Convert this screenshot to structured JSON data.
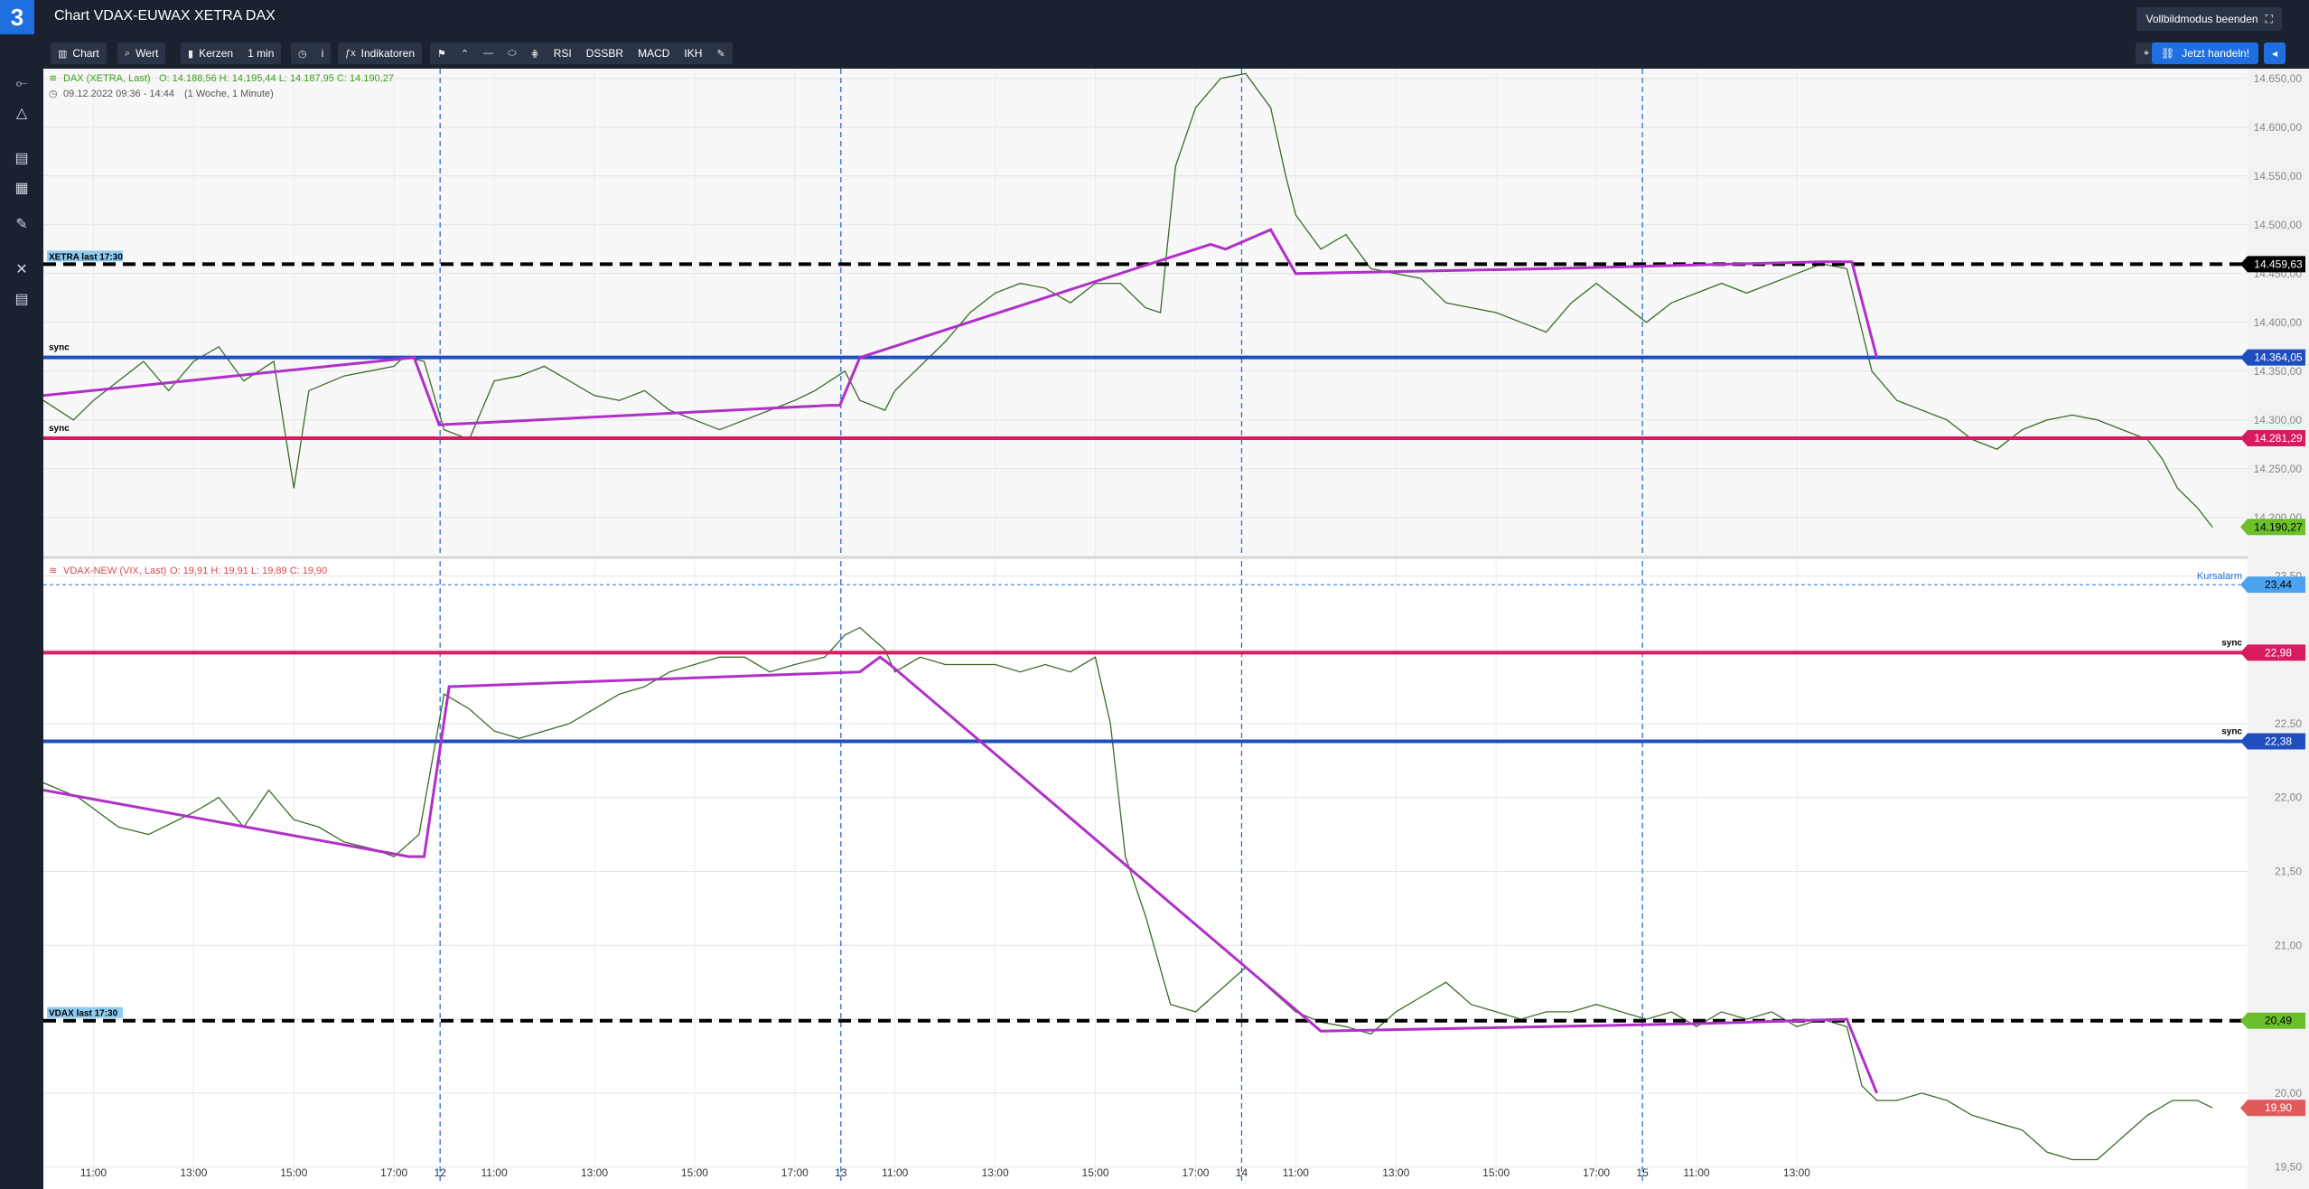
{
  "app": {
    "logo": "3",
    "title": "Chart VDAX-EUWAX XETRA DAX"
  },
  "topbar": {
    "fullscreen_exit_label": "Vollbildmodus beenden",
    "fullscreen_icon": "collapse-icon"
  },
  "toolbar": {
    "chart_label": "Chart",
    "value_label": "Wert",
    "candles_label": "Kerzen",
    "interval_label": "1 min",
    "info_label": "i",
    "indicators_label": "Indikatoren",
    "rsi_label": "RSI",
    "dssbr_label": "DSSBR",
    "macd_label": "MACD",
    "ikh_label": "IKH",
    "trade_label": "Jetzt handeln!"
  },
  "sidebar": {
    "icons": [
      "line-tool-icon",
      "triangle-icon",
      "fibonacci-icon",
      "trash-icon",
      "pen-icon",
      "tools-icon",
      "calculator-icon"
    ]
  },
  "colors": {
    "accent": "#1f6fe0",
    "magenta": "#d81b60",
    "blue": "#1f4fbf",
    "purple": "#b030c8",
    "green": "#6bbf2a",
    "red": "#e05a5a",
    "black": "#000000"
  },
  "chart_data": [
    {
      "type": "line",
      "title": "DAX (XETRA, Last)",
      "ohlc": {
        "O": "14.188,56",
        "H": "14.195,44",
        "L": "14.187,95",
        "C": "14.190,27"
      },
      "ohlc_labels": {
        "o": "O: 14.188,56",
        "h": "H: 14.195,44",
        "l": "L: 14.187,95",
        "c": "C: 14.190,27"
      },
      "range_text": "09.12.2022 09:36 - 14:44",
      "period_text": "(1 Woche, 1 Minute)",
      "ylim": [
        14160,
        14660
      ],
      "yticks": [
        "14.650,00",
        "14.600,00",
        "14.550,00",
        "14.500,00",
        "14.450,00",
        "14.400,00",
        "14.350,00",
        "14.300,00",
        "14.250,00",
        "14.200,00"
      ],
      "ytick_values": [
        14650,
        14600,
        14550,
        14500,
        14450,
        14400,
        14350,
        14300,
        14250,
        14200
      ],
      "xticks": [
        "11:00",
        "13:00",
        "15:00",
        "17:00",
        "12",
        "11:00",
        "13:00",
        "15:00",
        "17:00",
        "13",
        "11:00",
        "13:00",
        "15:00",
        "17:00",
        "14",
        "11:00",
        "13:00",
        "15:00",
        "17:00",
        "15",
        "11:00",
        "13:00"
      ],
      "xtick_index": [
        1,
        3,
        5,
        7,
        7.92,
        9,
        11,
        13,
        15,
        15.92,
        17,
        19,
        21,
        23,
        23.92,
        25,
        27,
        29,
        31,
        31.92,
        33,
        35
      ],
      "series": [
        {
          "values": [
            [
              0,
              14320
            ],
            [
              0.6,
              14300
            ],
            [
              1,
              14320
            ],
            [
              1.5,
              14340
            ],
            [
              2,
              14360
            ],
            [
              2.5,
              14330
            ],
            [
              3,
              14360
            ],
            [
              3.5,
              14375
            ],
            [
              4,
              14340
            ],
            [
              4.6,
              14360
            ],
            [
              5,
              14230
            ],
            [
              5.3,
              14330
            ],
            [
              6,
              14345
            ],
            [
              6.5,
              14350
            ],
            [
              7,
              14355
            ],
            [
              7.2,
              14365
            ],
            [
              7.6,
              14360
            ],
            [
              8,
              14290
            ],
            [
              8.5,
              14280
            ],
            [
              9,
              14340
            ],
            [
              9.5,
              14345
            ],
            [
              10,
              14355
            ],
            [
              10.5,
              14340
            ],
            [
              11,
              14325
            ],
            [
              11.5,
              14320
            ],
            [
              12,
              14330
            ],
            [
              12.5,
              14310
            ],
            [
              13,
              14300
            ],
            [
              13.5,
              14290
            ],
            [
              14,
              14300
            ],
            [
              14.5,
              14310
            ],
            [
              15,
              14320
            ],
            [
              15.4,
              14330
            ],
            [
              16,
              14350
            ],
            [
              16.3,
              14320
            ],
            [
              16.8,
              14310
            ],
            [
              17,
              14330
            ],
            [
              17.4,
              14350
            ],
            [
              18,
              14380
            ],
            [
              18.5,
              14410
            ],
            [
              19,
              14430
            ],
            [
              19.5,
              14440
            ],
            [
              20,
              14435
            ],
            [
              20.5,
              14420
            ],
            [
              21,
              14440
            ],
            [
              21.5,
              14440
            ],
            [
              22,
              14415
            ],
            [
              22.3,
              14410
            ],
            [
              22.6,
              14560
            ],
            [
              23,
              14620
            ],
            [
              23.5,
              14650
            ],
            [
              24,
              14655
            ],
            [
              24.5,
              14620
            ],
            [
              24.8,
              14550
            ],
            [
              25,
              14510
            ],
            [
              25.5,
              14475
            ],
            [
              26,
              14490
            ],
            [
              26.5,
              14455
            ],
            [
              27,
              14450
            ],
            [
              27.5,
              14445
            ],
            [
              28,
              14420
            ],
            [
              28.5,
              14415
            ],
            [
              29,
              14410
            ],
            [
              29.5,
              14400
            ],
            [
              30,
              14390
            ],
            [
              30.5,
              14420
            ],
            [
              31,
              14440
            ],
            [
              31.5,
              14420
            ],
            [
              32,
              14400
            ],
            [
              32.5,
              14420
            ],
            [
              33,
              14430
            ],
            [
              33.5,
              14440
            ],
            [
              34,
              14430
            ],
            [
              34.5,
              14440
            ],
            [
              35,
              14450
            ],
            [
              35.5,
              14460
            ],
            [
              36,
              14455
            ],
            [
              36.5,
              14350
            ],
            [
              37,
              14320
            ],
            [
              37.5,
              14310
            ],
            [
              38,
              14300
            ],
            [
              38.5,
              14280
            ],
            [
              39,
              14270
            ],
            [
              39.5,
              14290
            ],
            [
              40,
              14300
            ],
            [
              40.5,
              14305
            ],
            [
              41,
              14300
            ],
            [
              41.5,
              14290
            ],
            [
              42,
              14280
            ],
            [
              42.3,
              14260
            ],
            [
              42.6,
              14230
            ],
            [
              43,
              14210
            ],
            [
              43.3,
              14190
            ]
          ]
        }
      ],
      "hlines": [
        {
          "value": 14459.63,
          "label": "14.459,63",
          "style": "dashed-black",
          "tag": "XETRA last 17:30"
        },
        {
          "value": 14364.05,
          "label": "14.364,05",
          "style": "solid-blue",
          "tag": "sync"
        },
        {
          "value": 14281.29,
          "label": "14.281,29",
          "style": "solid-magenta",
          "tag": "sync"
        }
      ],
      "current": {
        "value": 14190.27,
        "label": "14.190,27"
      },
      "trend_path": [
        [
          0,
          14325
        ],
        [
          7.4,
          14364
        ],
        [
          7.9,
          14295
        ],
        [
          15.7,
          14315
        ],
        [
          15.9,
          14315
        ],
        [
          16.3,
          14364
        ],
        [
          23.3,
          14480
        ],
        [
          23.6,
          14475
        ],
        [
          24.5,
          14495
        ],
        [
          25,
          14450
        ],
        [
          30,
          14455
        ],
        [
          35.5,
          14462
        ],
        [
          36.1,
          14462
        ],
        [
          36.6,
          14364
        ]
      ]
    },
    {
      "type": "line",
      "title": "VDAX-NEW (VIX, Last)",
      "ohlc": {
        "O": "19,91",
        "H": "19,91",
        "L": "19,89",
        "C": "19,90"
      },
      "ohlc_labels": {
        "o": "O: 19,91",
        "h": "H: 19,91",
        "l": "L: 19,89",
        "c": "C: 19,90"
      },
      "ylim": [
        19.4,
        23.6
      ],
      "yticks": [
        "23,50",
        "23,00",
        "22,50",
        "22,00",
        "21,50",
        "21,00",
        "20,50",
        "20,00",
        "19,50"
      ],
      "ytick_values": [
        23.5,
        23.0,
        22.5,
        22.0,
        21.5,
        21.0,
        20.5,
        20.0,
        19.5
      ],
      "series": [
        {
          "values": [
            [
              0,
              22.1
            ],
            [
              0.7,
              22.0
            ],
            [
              1.5,
              21.8
            ],
            [
              2.1,
              21.75
            ],
            [
              3,
              21.9
            ],
            [
              3.5,
              22.0
            ],
            [
              4,
              21.8
            ],
            [
              4.5,
              22.05
            ],
            [
              5,
              21.85
            ],
            [
              5.5,
              21.8
            ],
            [
              6,
              21.7
            ],
            [
              6.6,
              21.65
            ],
            [
              7,
              21.6
            ],
            [
              7.5,
              21.75
            ],
            [
              8,
              22.7
            ],
            [
              8.5,
              22.6
            ],
            [
              9,
              22.45
            ],
            [
              9.5,
              22.4
            ],
            [
              10,
              22.45
            ],
            [
              10.5,
              22.5
            ],
            [
              11,
              22.6
            ],
            [
              11.5,
              22.7
            ],
            [
              12,
              22.75
            ],
            [
              12.5,
              22.85
            ],
            [
              13,
              22.9
            ],
            [
              13.5,
              22.95
            ],
            [
              14,
              22.95
            ],
            [
              14.5,
              22.85
            ],
            [
              15,
              22.9
            ],
            [
              15.6,
              22.95
            ],
            [
              16,
              23.1
            ],
            [
              16.3,
              23.15
            ],
            [
              16.8,
              23.0
            ],
            [
              17,
              22.85
            ],
            [
              17.5,
              22.95
            ],
            [
              18,
              22.9
            ],
            [
              18.5,
              22.9
            ],
            [
              19,
              22.9
            ],
            [
              19.5,
              22.85
            ],
            [
              20,
              22.9
            ],
            [
              20.5,
              22.85
            ],
            [
              21,
              22.95
            ],
            [
              21.3,
              22.5
            ],
            [
              21.6,
              21.6
            ],
            [
              22,
              21.2
            ],
            [
              22.5,
              20.6
            ],
            [
              23,
              20.55
            ],
            [
              23.5,
              20.7
            ],
            [
              24,
              20.85
            ],
            [
              24.5,
              20.7
            ],
            [
              25,
              20.55
            ],
            [
              25.5,
              20.48
            ],
            [
              26,
              20.45
            ],
            [
              26.5,
              20.4
            ],
            [
              27,
              20.55
            ],
            [
              27.5,
              20.65
            ],
            [
              28,
              20.75
            ],
            [
              28.5,
              20.6
            ],
            [
              29,
              20.55
            ],
            [
              29.5,
              20.5
            ],
            [
              30,
              20.55
            ],
            [
              30.5,
              20.55
            ],
            [
              31,
              20.6
            ],
            [
              31.5,
              20.55
            ],
            [
              32,
              20.5
            ],
            [
              32.5,
              20.55
            ],
            [
              33,
              20.45
            ],
            [
              33.5,
              20.55
            ],
            [
              34,
              20.5
            ],
            [
              34.5,
              20.55
            ],
            [
              35,
              20.45
            ],
            [
              35.5,
              20.5
            ],
            [
              36,
              20.45
            ],
            [
              36.3,
              20.05
            ],
            [
              36.6,
              19.95
            ],
            [
              37,
              19.95
            ],
            [
              37.5,
              20.0
            ],
            [
              38,
              19.95
            ],
            [
              38.5,
              19.85
            ],
            [
              39,
              19.8
            ],
            [
              39.5,
              19.75
            ],
            [
              40,
              19.6
            ],
            [
              40.5,
              19.55
            ],
            [
              41,
              19.55
            ],
            [
              41.5,
              19.7
            ],
            [
              42,
              19.85
            ],
            [
              42.5,
              19.95
            ],
            [
              43,
              19.95
            ],
            [
              43.3,
              19.9
            ]
          ]
        }
      ],
      "hlines": [
        {
          "value": 23.44,
          "label": "23,44",
          "style": "dotted-blue",
          "tag": "Kursalarm"
        },
        {
          "value": 22.98,
          "label": "22,98",
          "style": "solid-magenta",
          "tag": "sync"
        },
        {
          "value": 22.38,
          "label": "22,38",
          "style": "solid-blue",
          "tag": "sync"
        },
        {
          "value": 20.49,
          "label": "20,49",
          "style": "dashed-black",
          "tag": "VDAX last 17:30"
        }
      ],
      "current": {
        "value": 19.9,
        "label": "19,90"
      },
      "trend_path": [
        [
          0,
          22.05
        ],
        [
          7.3,
          21.6
        ],
        [
          7.6,
          21.6
        ],
        [
          8.1,
          22.75
        ],
        [
          16.3,
          22.85
        ],
        [
          16.7,
          22.95
        ],
        [
          16.9,
          22.9
        ],
        [
          25.5,
          20.42
        ],
        [
          33,
          20.47
        ],
        [
          36,
          20.5
        ],
        [
          36.6,
          20.0
        ]
      ]
    }
  ]
}
